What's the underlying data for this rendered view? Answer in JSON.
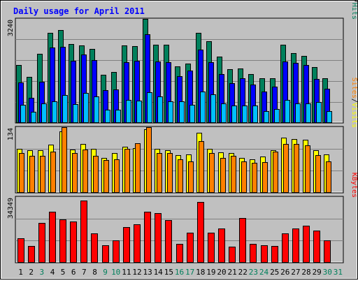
{
  "chart_data": [
    {
      "type": "bar",
      "title": "Daily usage for April 2011",
      "categories": [
        "1",
        "2",
        "3",
        "4",
        "5",
        "6",
        "7",
        "8",
        "9",
        "10",
        "11",
        "12",
        "13",
        "14",
        "15",
        "16",
        "17",
        "18",
        "19",
        "20",
        "21",
        "22",
        "23",
        "24",
        "25",
        "26",
        "27",
        "28",
        "29",
        "30",
        "31"
      ],
      "weekend_days": [
        "3",
        "9",
        "10",
        "16",
        "17",
        "23",
        "24",
        "30",
        "31"
      ],
      "ymax_label": "3240",
      "ymax": 3240,
      "ylabel_parts": [
        "Pages",
        "Files",
        "Hits"
      ],
      "ylabel_separators": [
        "/",
        "/"
      ],
      "grid": true,
      "series": [
        {
          "name": "Hits",
          "color": "#00805c",
          "values": [
            1790,
            1420,
            2150,
            2810,
            2890,
            2460,
            2400,
            2300,
            1490,
            1580,
            2400,
            2380,
            3240,
            2440,
            2440,
            1760,
            1830,
            2800,
            2530,
            2060,
            1670,
            1690,
            1500,
            1390,
            1390,
            2420,
            2170,
            2090,
            1730,
            1390,
            0
          ]
        },
        {
          "name": "Files",
          "color": "#0000ff",
          "values": [
            1240,
            770,
            1280,
            2340,
            2370,
            1930,
            2130,
            1950,
            1010,
            1030,
            1890,
            1920,
            2760,
            1910,
            1890,
            1440,
            1610,
            2270,
            1880,
            1520,
            1230,
            1380,
            1180,
            960,
            1110,
            1910,
            1850,
            1790,
            1350,
            1050,
            0
          ]
        },
        {
          "name": "Pages",
          "color": "#00bfff",
          "values": [
            540,
            320,
            590,
            650,
            850,
            560,
            920,
            800,
            390,
            390,
            690,
            680,
            940,
            810,
            650,
            650,
            540,
            970,
            870,
            590,
            530,
            530,
            530,
            350,
            410,
            690,
            600,
            590,
            630,
            360,
            0
          ]
        }
      ]
    },
    {
      "type": "bar",
      "ymax_label": "134",
      "ymax": 134,
      "ylabel_parts": [
        "Sites",
        "Visits"
      ],
      "ylabel_separators": [
        "/"
      ],
      "grid": true,
      "series": [
        {
          "name": "Visits",
          "color": "#ffff00",
          "values": [
            90,
            87,
            87,
            98,
            125,
            88,
            100,
            90,
            70,
            80,
            93,
            91,
            130,
            90,
            87,
            76,
            78,
            122,
            90,
            82,
            80,
            70,
            68,
            73,
            87,
            112,
            110,
            108,
            87,
            78,
            0
          ]
        },
        {
          "name": "Sites",
          "color": "#ff8000",
          "values": [
            80,
            75,
            75,
            83,
            134,
            80,
            88,
            75,
            66,
            68,
            90,
            101,
            134,
            80,
            81,
            68,
            64,
            105,
            81,
            70,
            75,
            63,
            60,
            62,
            83,
            100,
            100,
            97,
            77,
            63,
            0
          ]
        }
      ]
    },
    {
      "type": "bar",
      "ymax_label": "34349",
      "ymax": 34349,
      "ylabel_parts": [
        "KBytes"
      ],
      "ylabel_separators": [],
      "grid": true,
      "series": [
        {
          "name": "KBytes",
          "color": "#ff0000",
          "values": [
            12600,
            8500,
            20700,
            26500,
            22600,
            21500,
            32500,
            15200,
            8700,
            11500,
            18600,
            19800,
            26700,
            25900,
            22000,
            9700,
            15600,
            31900,
            15500,
            17900,
            8200,
            23400,
            9700,
            8800,
            8600,
            15100,
            17800,
            19300,
            16600,
            11300,
            0
          ]
        }
      ]
    }
  ]
}
